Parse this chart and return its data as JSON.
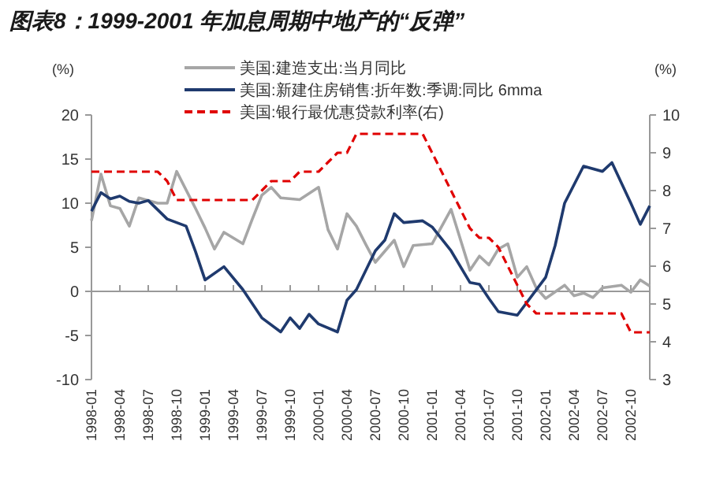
{
  "chart_data": {
    "type": "line",
    "title": "图表8：1999-2001 年加息周期中地产的“反弹”",
    "ylabel": "(%)",
    "y2label": "(%)",
    "xlim": [
      "1998-01",
      "2002-12"
    ],
    "xticks": [
      "1998-01",
      "1998-04",
      "1998-07",
      "1998-10",
      "1999-01",
      "1999-04",
      "1999-07",
      "1999-10",
      "2000-01",
      "2000-04",
      "2000-07",
      "2000-10",
      "2001-01",
      "2001-04",
      "2001-07",
      "2001-10",
      "2002-01",
      "2002-04",
      "2002-07",
      "2002-10"
    ],
    "ylim": [
      -10,
      20
    ],
    "yticks": [
      -10,
      -5,
      0,
      5,
      10,
      15,
      20
    ],
    "y2lim": [
      3,
      10
    ],
    "y2ticks": [
      3,
      4,
      5,
      6,
      7,
      8,
      9,
      10
    ],
    "legend": "top",
    "series": [
      {
        "name": "美国:建造支出:当月同比",
        "color": "#a6a6a6",
        "x": [
          "1998-01",
          "1998-02",
          "1998-03",
          "1998-04",
          "1998-05",
          "1998-06",
          "1998-08",
          "1998-09",
          "1998-10",
          "1998-12",
          "1999-01",
          "1999-02",
          "1999-03",
          "1999-05",
          "1999-06",
          "1999-07",
          "1999-08",
          "1999-09",
          "1999-11",
          "2000-01",
          "2000-02",
          "2000-03",
          "2000-04",
          "2000-05",
          "2000-06",
          "2000-07",
          "2000-09",
          "2000-10",
          "2000-11",
          "2001-01",
          "2001-03",
          "2001-05",
          "2001-06",
          "2001-07",
          "2001-08",
          "2001-09",
          "2001-10",
          "2001-11",
          "2001-12",
          "2002-01",
          "2002-03",
          "2002-04",
          "2002-05",
          "2002-06",
          "2002-07",
          "2002-09",
          "2002-10",
          "2002-11",
          "2002-12"
        ],
        "values": [
          8,
          13.3,
          9.7,
          9.4,
          7.4,
          10.6,
          10,
          10,
          13.6,
          9.4,
          7.2,
          4.8,
          6.7,
          5.4,
          8.2,
          10.9,
          11.8,
          10.6,
          10.4,
          11.8,
          7,
          4.8,
          8.8,
          7.4,
          5.3,
          3.3,
          5.8,
          2.8,
          5.2,
          5.4,
          9.3,
          2.4,
          4,
          3,
          4.8,
          5.4,
          1.6,
          2.8,
          0.4,
          -0.8,
          0.7,
          -0.5,
          -0.2,
          -0.7,
          0.4,
          0.7,
          -0.1,
          1.3,
          0.6
        ]
      },
      {
        "name": "美国:新建住房销售:折年数:季调:同比 6mma",
        "color": "#1f3a6e",
        "x": [
          "1998-01",
          "1998-02",
          "1998-03",
          "1998-04",
          "1998-05",
          "1998-06",
          "1998-07",
          "1998-09",
          "1998-11",
          "1998-12",
          "1999-01",
          "1999-03",
          "1999-05",
          "1999-07",
          "1999-09",
          "1999-10",
          "1999-11",
          "1999-12",
          "2000-01",
          "2000-03",
          "2000-04",
          "2000-05",
          "2000-07",
          "2000-08",
          "2000-09",
          "2000-10",
          "2000-12",
          "2001-01",
          "2001-03",
          "2001-05",
          "2001-06",
          "2001-07",
          "2001-08",
          "2001-10",
          "2002-01",
          "2002-02",
          "2002-03",
          "2002-05",
          "2002-07",
          "2002-08",
          "2002-10",
          "2002-11",
          "2002-12"
        ],
        "values": [
          9.1,
          11.2,
          10.5,
          10.8,
          10.2,
          10,
          10.3,
          8.2,
          7.4,
          4.5,
          1.3,
          2.8,
          0.2,
          -3,
          -4.6,
          -3,
          -4.2,
          -2.6,
          -3.7,
          -4.6,
          -1,
          0.2,
          4.6,
          5.8,
          8.8,
          7.8,
          8,
          7.3,
          4.6,
          1,
          0.8,
          -0.8,
          -2.3,
          -2.7,
          1.6,
          5.2,
          10,
          14.2,
          13.6,
          14.6,
          10,
          7.6,
          9.7
        ]
      },
      {
        "name": "美国:银行最优惠贷款利率(右)",
        "color": "#e00000",
        "axis": "y2",
        "line_style": "dashed",
        "x": [
          "1998-01",
          "1998-02",
          "1998-03",
          "1998-04",
          "1998-05",
          "1998-06",
          "1998-07",
          "1998-08",
          "1998-09",
          "1998-10",
          "1998-11",
          "1998-12",
          "1999-01",
          "1999-02",
          "1999-03",
          "1999-04",
          "1999-05",
          "1999-06",
          "1999-07",
          "1999-08",
          "1999-09",
          "1999-10",
          "1999-11",
          "1999-12",
          "2000-01",
          "2000-02",
          "2000-03",
          "2000-04",
          "2000-05",
          "2000-06",
          "2000-07",
          "2000-08",
          "2000-09",
          "2000-10",
          "2000-11",
          "2000-12",
          "2001-01",
          "2001-02",
          "2001-03",
          "2001-04",
          "2001-05",
          "2001-06",
          "2001-07",
          "2001-08",
          "2001-09",
          "2001-10",
          "2001-11",
          "2001-12",
          "2002-01",
          "2002-02",
          "2002-03",
          "2002-04",
          "2002-05",
          "2002-06",
          "2002-07",
          "2002-08",
          "2002-09",
          "2002-10",
          "2002-11",
          "2002-12"
        ],
        "values": [
          8.5,
          8.5,
          8.5,
          8.5,
          8.5,
          8.5,
          8.5,
          8.5,
          8.25,
          7.75,
          7.75,
          7.75,
          7.75,
          7.75,
          7.75,
          7.75,
          7.75,
          7.75,
          8,
          8.25,
          8.25,
          8.25,
          8.5,
          8.5,
          8.5,
          8.75,
          9,
          9,
          9.5,
          9.5,
          9.5,
          9.5,
          9.5,
          9.5,
          9.5,
          9.5,
          9,
          8.5,
          8,
          7.5,
          7,
          6.75,
          6.75,
          6.5,
          6,
          5.5,
          5,
          4.75,
          4.75,
          4.75,
          4.75,
          4.75,
          4.75,
          4.75,
          4.75,
          4.75,
          4.75,
          4.25,
          4.25,
          4.25
        ]
      }
    ]
  }
}
